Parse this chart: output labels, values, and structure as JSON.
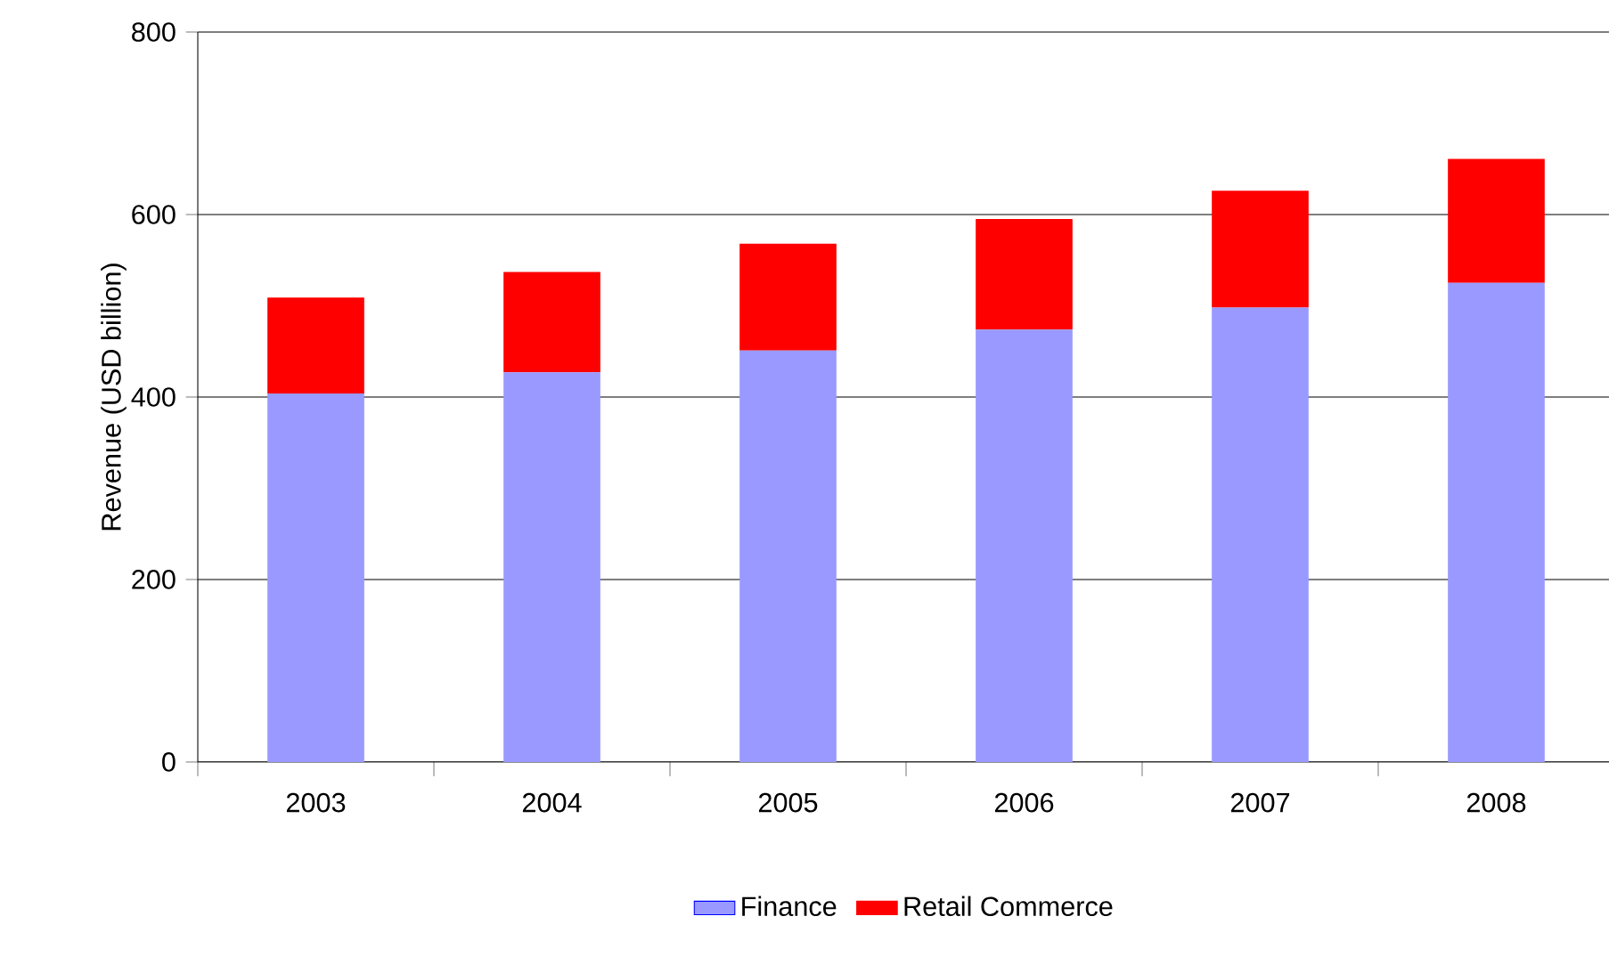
{
  "chart_data": {
    "type": "bar",
    "stacked": true,
    "ylabel": "Revenue (USD billion)",
    "categories": [
      "2003",
      "2004",
      "2005",
      "2006",
      "2007",
      "2008"
    ],
    "series": [
      {
        "name": "Finance",
        "color": "#9999ff",
        "values": [
          404,
          427,
          451,
          474,
          498,
          525
        ]
      },
      {
        "name": "Retail Commerce",
        "color": "#ff0000",
        "values": [
          105,
          110,
          117,
          121,
          128,
          136
        ]
      }
    ],
    "ylim": [
      0,
      800
    ],
    "yticks": [
      0,
      200,
      400,
      600,
      800
    ],
    "grid": "y",
    "legend": "bottom"
  }
}
